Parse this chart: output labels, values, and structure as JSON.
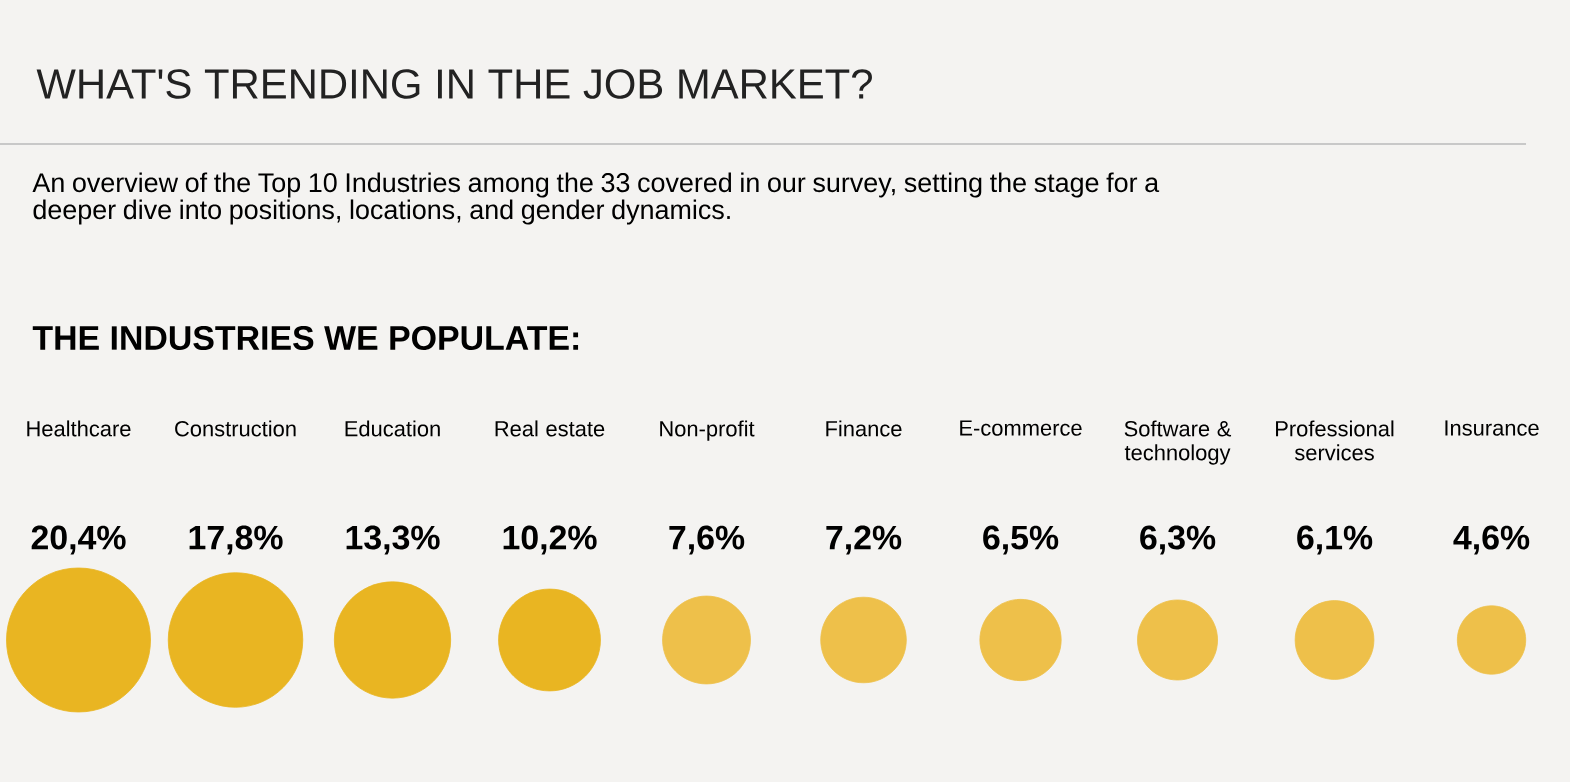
{
  "chart_data": {
    "type": "other",
    "title": "WHAT'S TRENDING IN THE JOB MARKET?",
    "subtitle": "An overview of the Top 10 Industries among the 33 covered in our survey, setting the stage for a deeper dive into positions, locations, and gender dynamics.",
    "annotations": [
      "THE INDUSTRIES WE POPULATE:"
    ],
    "categories": [
      "Healthcare",
      "Construction",
      "Education",
      "Real estate",
      "Non-profit",
      "Finance",
      "E-commerce",
      "Software & technology",
      "Professional services",
      "Insurance"
    ],
    "values": [
      20.4,
      17.8,
      13.3,
      10.2,
      7.6,
      7.2,
      6.5,
      6.3,
      6.1,
      4.6
    ],
    "value_labels": [
      "20,4%",
      "17,8%",
      "13,3%",
      "10,2%",
      "7,6%",
      "7,2%",
      "6,5%",
      "6,3%",
      "6,1%",
      "4,6%"
    ],
    "colors": [
      "#e9b522",
      "#e9b522",
      "#e9b522",
      "#e9b522",
      "#eec04a",
      "#eec04a",
      "#eec04a",
      "#eec04a",
      "#eec04a",
      "#eec04a"
    ]
  }
}
